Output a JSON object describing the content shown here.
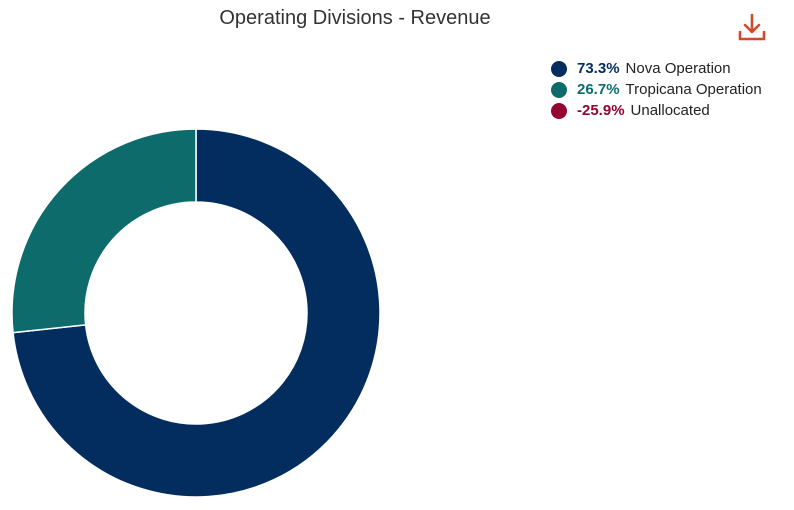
{
  "chart_data": {
    "type": "pie",
    "title": "Operating Divisions - Revenue",
    "donut": true,
    "slices": [
      {
        "label": "Nova Operation",
        "percent_label": "73.3%",
        "value": 73.3,
        "color": "#022d5e"
      },
      {
        "label": "Tropicana Operation",
        "percent_label": "26.7%",
        "value": 26.7,
        "color": "#0e6b6b"
      },
      {
        "label": "Unallocated",
        "percent_label": "-25.9%",
        "value": -25.9,
        "color": "#940530"
      }
    ],
    "legend_position": "top-right"
  },
  "toolbar": {
    "download_icon": "download-icon",
    "download_color": "#d14b2a"
  }
}
